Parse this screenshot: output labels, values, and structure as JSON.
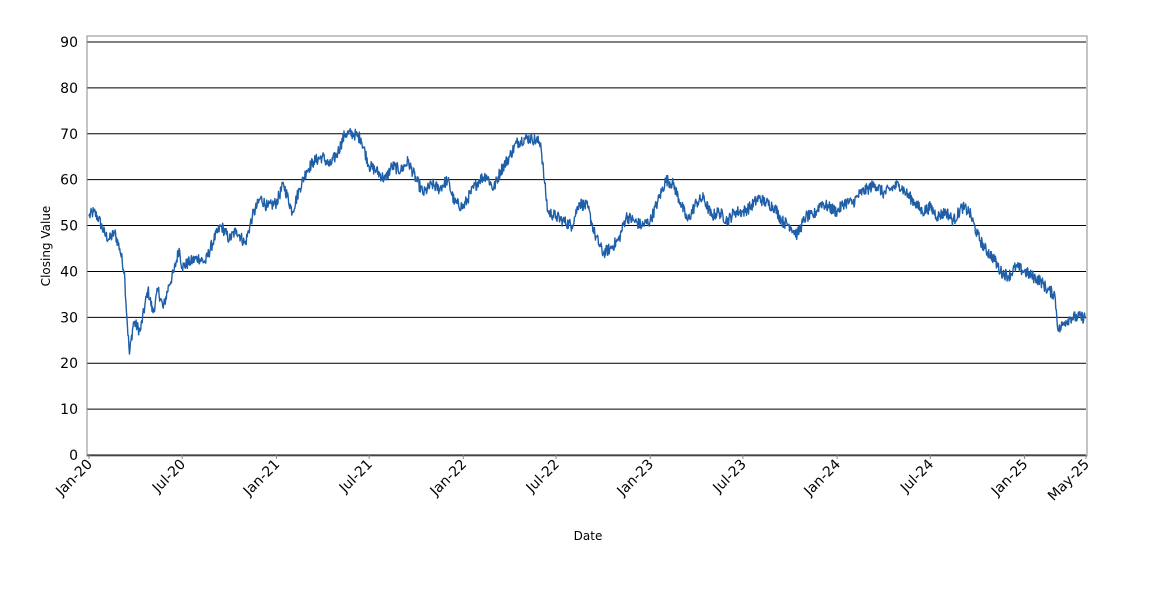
{
  "chart_data": {
    "type": "line",
    "title": "",
    "xlabel": "Date",
    "ylabel": "Closing Value",
    "ylim": [
      0,
      90
    ],
    "yticks": [
      0,
      10,
      20,
      30,
      40,
      50,
      60,
      70,
      80,
      90
    ],
    "xlim": [
      "2020-01-01",
      "2025-05-01"
    ],
    "xticks": [
      {
        "date": "2020-01-01",
        "label": "Jan-20"
      },
      {
        "date": "2020-07-01",
        "label": "Jul-20"
      },
      {
        "date": "2021-01-01",
        "label": "Jan-21"
      },
      {
        "date": "2021-07-01",
        "label": "Jul-21"
      },
      {
        "date": "2022-01-01",
        "label": "Jan-22"
      },
      {
        "date": "2022-07-01",
        "label": "Jul-22"
      },
      {
        "date": "2023-01-01",
        "label": "Jan-23"
      },
      {
        "date": "2023-07-01",
        "label": "Jul-23"
      },
      {
        "date": "2024-01-01",
        "label": "Jan-24"
      },
      {
        "date": "2024-07-01",
        "label": "Jul-24"
      },
      {
        "date": "2025-01-01",
        "label": "Jan-25"
      },
      {
        "date": "2025-05-01",
        "label": "May-25"
      }
    ],
    "grid": "horizontal",
    "line_color": "#1f5fa8",
    "series": [
      {
        "points": [
          [
            "2020-01-01",
            52
          ],
          [
            "2020-01-10",
            53
          ],
          [
            "2020-01-20",
            51.5
          ],
          [
            "2020-02-01",
            48
          ],
          [
            "2020-02-10",
            47
          ],
          [
            "2020-02-20",
            48.5
          ],
          [
            "2020-03-01",
            45
          ],
          [
            "2020-03-10",
            40
          ],
          [
            "2020-03-15",
            30
          ],
          [
            "2020-03-20",
            22
          ],
          [
            "2020-03-28",
            29
          ],
          [
            "2020-04-10",
            27
          ],
          [
            "2020-04-25",
            36
          ],
          [
            "2020-05-05",
            31
          ],
          [
            "2020-05-15",
            36
          ],
          [
            "2020-05-25",
            32
          ],
          [
            "2020-06-05",
            37
          ],
          [
            "2020-06-15",
            40
          ],
          [
            "2020-06-25",
            45
          ],
          [
            "2020-07-01",
            41
          ],
          [
            "2020-07-15",
            42
          ],
          [
            "2020-08-01",
            43
          ],
          [
            "2020-08-15",
            42
          ],
          [
            "2020-09-01",
            47
          ],
          [
            "2020-09-15",
            50
          ],
          [
            "2020-10-01",
            47
          ],
          [
            "2020-10-15",
            49
          ],
          [
            "2020-11-01",
            46
          ],
          [
            "2020-11-15",
            52
          ],
          [
            "2020-12-01",
            56
          ],
          [
            "2020-12-15",
            54
          ],
          [
            "2021-01-01",
            55
          ],
          [
            "2021-01-15",
            59
          ],
          [
            "2021-02-01",
            53
          ],
          [
            "2021-02-15",
            58
          ],
          [
            "2021-03-01",
            62
          ],
          [
            "2021-03-15",
            64
          ],
          [
            "2021-04-01",
            65
          ],
          [
            "2021-04-15",
            63
          ],
          [
            "2021-05-01",
            66
          ],
          [
            "2021-05-15",
            70
          ],
          [
            "2021-06-01",
            70
          ],
          [
            "2021-06-15",
            69
          ],
          [
            "2021-07-01",
            63
          ],
          [
            "2021-07-15",
            62
          ],
          [
            "2021-08-01",
            60
          ],
          [
            "2021-08-15",
            63
          ],
          [
            "2021-09-01",
            62
          ],
          [
            "2021-09-15",
            64
          ],
          [
            "2021-10-01",
            60
          ],
          [
            "2021-10-15",
            57
          ],
          [
            "2021-11-01",
            59
          ],
          [
            "2021-11-15",
            58
          ],
          [
            "2021-12-01",
            60
          ],
          [
            "2021-12-15",
            55
          ],
          [
            "2022-01-01",
            54
          ],
          [
            "2022-01-15",
            57
          ],
          [
            "2022-02-01",
            60
          ],
          [
            "2022-02-15",
            61
          ],
          [
            "2022-03-01",
            58
          ],
          [
            "2022-03-15",
            62
          ],
          [
            "2022-04-01",
            65
          ],
          [
            "2022-04-15",
            68
          ],
          [
            "2022-05-01",
            69
          ],
          [
            "2022-05-15",
            69
          ],
          [
            "2022-06-01",
            68
          ],
          [
            "2022-06-08",
            60
          ],
          [
            "2022-06-15",
            53
          ],
          [
            "2022-07-01",
            52
          ],
          [
            "2022-07-15",
            51
          ],
          [
            "2022-08-01",
            50
          ],
          [
            "2022-08-15",
            55
          ],
          [
            "2022-09-01",
            54
          ],
          [
            "2022-09-15",
            48
          ],
          [
            "2022-10-01",
            44
          ],
          [
            "2022-10-15",
            45
          ],
          [
            "2022-11-01",
            47
          ],
          [
            "2022-11-15",
            52
          ],
          [
            "2022-12-01",
            51
          ],
          [
            "2022-12-15",
            50
          ],
          [
            "2023-01-01",
            51
          ],
          [
            "2023-01-15",
            55
          ],
          [
            "2023-02-01",
            60
          ],
          [
            "2023-02-15",
            59
          ],
          [
            "2023-03-01",
            55
          ],
          [
            "2023-03-15",
            51
          ],
          [
            "2023-04-01",
            55
          ],
          [
            "2023-04-15",
            56
          ],
          [
            "2023-05-01",
            52
          ],
          [
            "2023-05-15",
            53
          ],
          [
            "2023-06-01",
            51
          ],
          [
            "2023-06-15",
            53
          ],
          [
            "2023-07-01",
            53
          ],
          [
            "2023-07-15",
            54
          ],
          [
            "2023-08-01",
            56
          ],
          [
            "2023-08-15",
            55
          ],
          [
            "2023-09-01",
            54
          ],
          [
            "2023-09-15",
            51
          ],
          [
            "2023-10-01",
            50
          ],
          [
            "2023-10-15",
            48
          ],
          [
            "2023-11-01",
            52
          ],
          [
            "2023-11-15",
            52
          ],
          [
            "2023-12-01",
            55
          ],
          [
            "2023-12-15",
            54
          ],
          [
            "2024-01-01",
            53
          ],
          [
            "2024-01-15",
            55
          ],
          [
            "2024-02-01",
            55
          ],
          [
            "2024-02-15",
            57
          ],
          [
            "2024-03-01",
            58
          ],
          [
            "2024-03-15",
            59
          ],
          [
            "2024-04-01",
            57
          ],
          [
            "2024-04-15",
            58
          ],
          [
            "2024-05-01",
            59
          ],
          [
            "2024-05-15",
            57
          ],
          [
            "2024-06-01",
            55
          ],
          [
            "2024-06-15",
            53
          ],
          [
            "2024-07-01",
            54
          ],
          [
            "2024-07-15",
            52
          ],
          [
            "2024-08-01",
            53
          ],
          [
            "2024-08-15",
            51
          ],
          [
            "2024-09-01",
            54
          ],
          [
            "2024-09-15",
            53
          ],
          [
            "2024-10-01",
            48
          ],
          [
            "2024-10-15",
            45
          ],
          [
            "2024-11-01",
            43
          ],
          [
            "2024-11-15",
            40
          ],
          [
            "2024-12-01",
            39
          ],
          [
            "2024-12-15",
            41
          ],
          [
            "2025-01-01",
            40
          ],
          [
            "2025-01-15",
            39
          ],
          [
            "2025-02-01",
            38
          ],
          [
            "2025-02-15",
            36
          ],
          [
            "2025-03-01",
            35
          ],
          [
            "2025-03-08",
            27
          ],
          [
            "2025-03-20",
            29
          ],
          [
            "2025-04-01",
            30
          ],
          [
            "2025-04-15",
            30
          ],
          [
            "2025-05-01",
            30
          ]
        ]
      }
    ]
  }
}
